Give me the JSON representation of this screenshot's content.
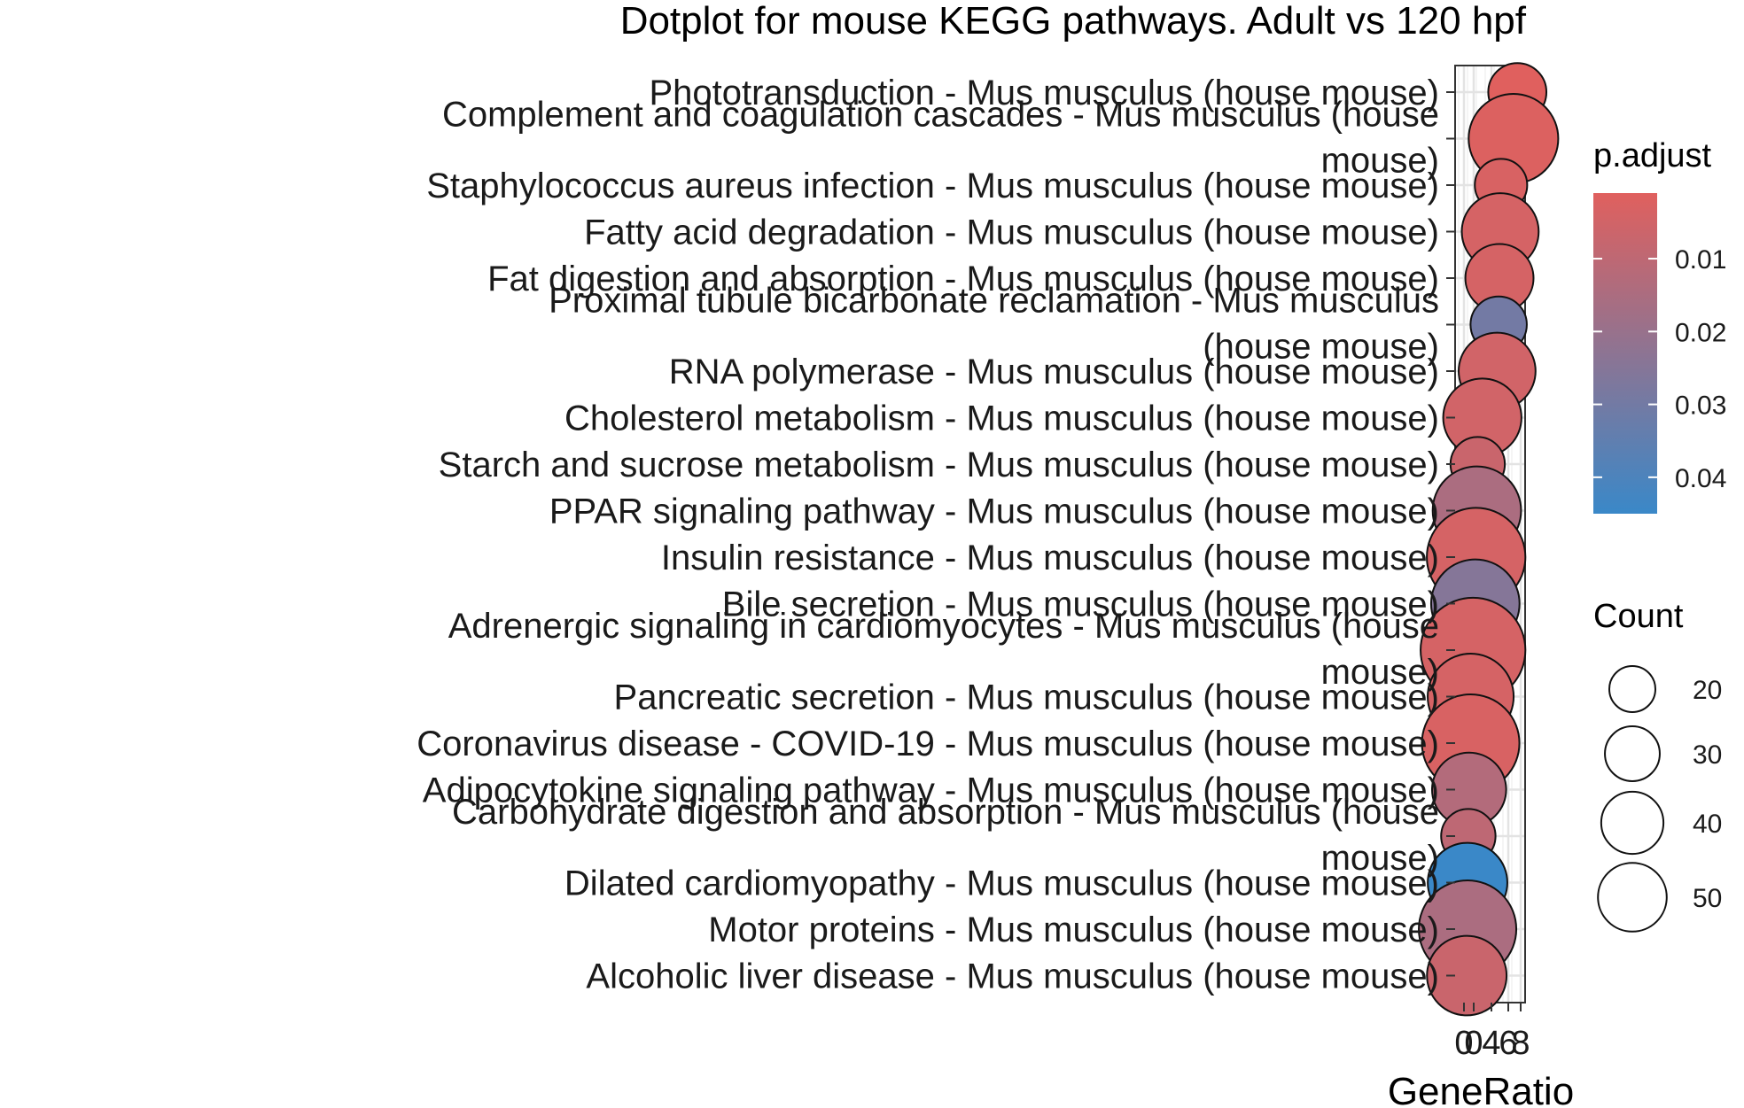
{
  "chart_data": {
    "type": "scatter",
    "title": "Dotplot for mouse KEGG pathways. Adult vs 120 hpf",
    "xlabel": "GeneRatio",
    "xlim": [
      0.0,
      0.09
    ],
    "x_ticks": [
      "0",
      "0",
      "4",
      "6",
      "8"
    ],
    "grid": true,
    "legend_placement": "right",
    "color_legend": {
      "title": "p.adjust",
      "ticks": [
        "0.01",
        "0.02",
        "0.03",
        "0.04"
      ],
      "values": [
        0.01,
        0.02,
        0.03,
        0.04
      ],
      "range": [
        0.001,
        0.045
      ],
      "low_color": "#e0605e",
      "high_color": "#3a88c8"
    },
    "size_legend": {
      "title": "Count",
      "ticks": [
        "20",
        "30",
        "40",
        "50"
      ],
      "values": [
        20,
        30,
        40,
        50
      ]
    },
    "points": [
      {
        "label": [
          "Phototransduction - Mus musculus (house mouse)"
        ],
        "x": 0.08,
        "count": 16,
        "padj": 0.001
      },
      {
        "label": [
          "Complement and coagulation cascades - Mus musculus (house",
          "mouse)"
        ],
        "x": 0.075,
        "count": 38,
        "padj": 0.002
      },
      {
        "label": [
          "Staphylococcus aureus infection - Mus musculus (house mouse)"
        ],
        "x": 0.059,
        "count": 13,
        "padj": 0.003
      },
      {
        "label": [
          "Fatty acid degradation - Mus musculus (house mouse)"
        ],
        "x": 0.058,
        "count": 28,
        "padj": 0.004
      },
      {
        "label": [
          "Fat digestion and absorption - Mus musculus (house mouse)"
        ],
        "x": 0.057,
        "count": 22,
        "padj": 0.004
      },
      {
        "label": [
          "Proximal tubule bicarbonate reclamation - Mus musculus",
          "(house mouse)"
        ],
        "x": 0.056,
        "count": 15,
        "padj": 0.03
      },
      {
        "label": [
          "RNA polymerase - Mus musculus (house mouse)"
        ],
        "x": 0.054,
        "count": 28,
        "padj": 0.005
      },
      {
        "label": [
          "Cholesterol metabolism - Mus musculus (house mouse)"
        ],
        "x": 0.035,
        "count": 29,
        "padj": 0.005
      },
      {
        "label": [
          "Starch and sucrose metabolism - Mus musculus (house mouse)"
        ],
        "x": 0.029,
        "count": 14,
        "padj": 0.007
      },
      {
        "label": [
          "PPAR signaling pathway - Mus musculus (house mouse)"
        ],
        "x": 0.028,
        "count": 37,
        "padj": 0.015
      },
      {
        "label": [
          "Insulin resistance - Mus musculus (house mouse)"
        ],
        "x": 0.027,
        "count": 46,
        "padj": 0.004
      },
      {
        "label": [
          "Bile secretion - Mus musculus (house mouse)"
        ],
        "x": 0.026,
        "count": 37,
        "padj": 0.025
      },
      {
        "label": [
          "Adrenergic signaling in cardiomyocytes - Mus musculus (house",
          "mouse)"
        ],
        "x": 0.023,
        "count": 52,
        "padj": 0.004
      },
      {
        "label": [
          "Pancreatic secretion - Mus musculus (house mouse)"
        ],
        "x": 0.02,
        "count": 35,
        "padj": 0.004
      },
      {
        "label": [
          "Coronavirus disease - COVID-19 - Mus musculus (house mouse)"
        ],
        "x": 0.02,
        "count": 45,
        "padj": 0.003
      },
      {
        "label": [
          "Adipocytokine signaling pathway - Mus musculus (house mouse)"
        ],
        "x": 0.018,
        "count": 26,
        "padj": 0.013
      },
      {
        "label": [
          "Carbohydrate digestion and absorption - Mus musculus (house",
          "mouse)"
        ],
        "x": 0.017,
        "count": 14,
        "padj": 0.01
      },
      {
        "label": [
          "Dilated cardiomyopathy - Mus musculus (house mouse)"
        ],
        "x": 0.016,
        "count": 30,
        "padj": 0.045
      },
      {
        "label": [
          "Motor proteins - Mus musculus (house mouse)"
        ],
        "x": 0.016,
        "count": 45,
        "padj": 0.015
      },
      {
        "label": [
          "Alcoholic liver disease - Mus musculus (house mouse)"
        ],
        "x": 0.015,
        "count": 30,
        "padj": 0.007
      }
    ]
  }
}
